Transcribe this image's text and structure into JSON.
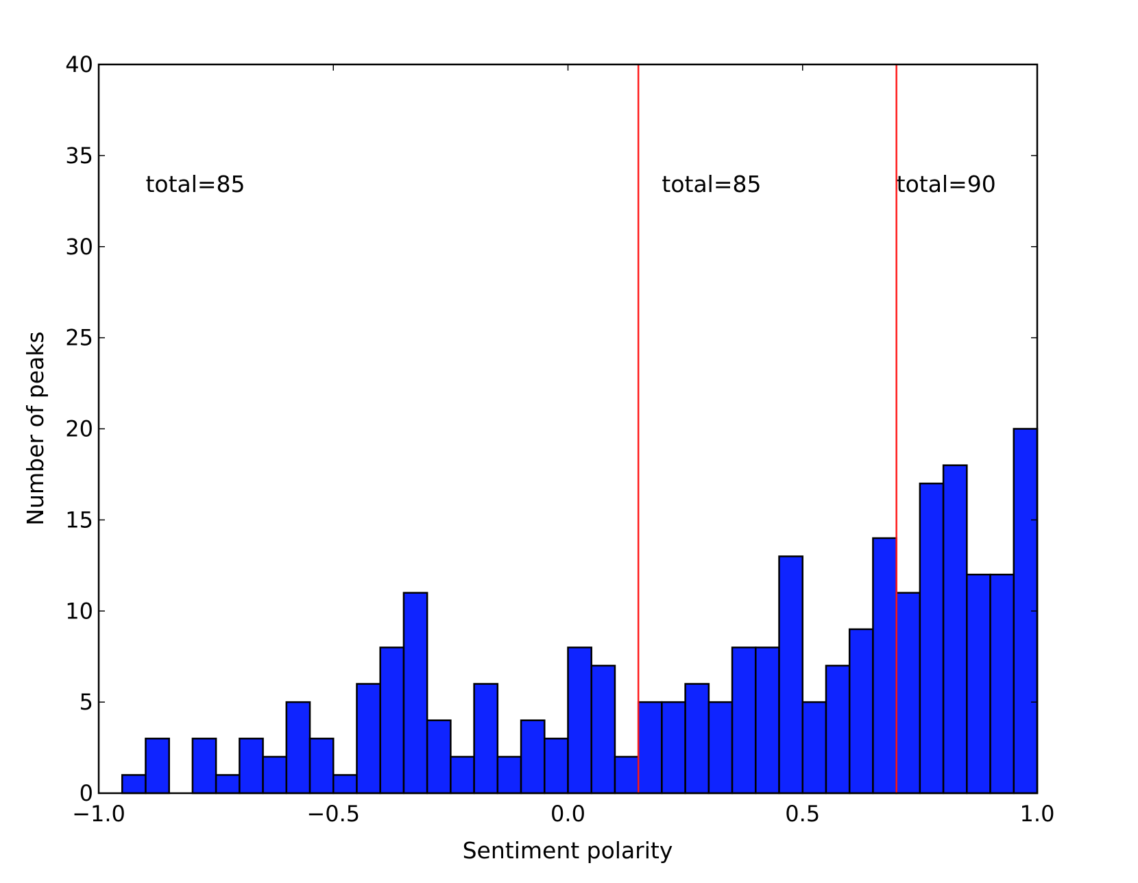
{
  "chart_data": {
    "type": "bar",
    "title": "",
    "xlabel": "Sentiment polarity",
    "ylabel": "Number of peaks",
    "xlim": [
      -1.0,
      1.0
    ],
    "ylim": [
      0,
      40
    ],
    "bin_width": 0.05,
    "bin_starts": [
      -0.95,
      -0.9,
      -0.85,
      -0.8,
      -0.75,
      -0.7,
      -0.65,
      -0.6,
      -0.55,
      -0.5,
      -0.45,
      -0.4,
      -0.35,
      -0.3,
      -0.25,
      -0.2,
      -0.15,
      -0.1,
      -0.05,
      0.0,
      0.05,
      0.1,
      0.15,
      0.2,
      0.25,
      0.3,
      0.35,
      0.4,
      0.45,
      0.5,
      0.55,
      0.6,
      0.65,
      0.7,
      0.75,
      0.8,
      0.85,
      0.9,
      0.95
    ],
    "values": [
      1,
      3,
      0,
      3,
      1,
      3,
      2,
      5,
      3,
      1,
      6,
      8,
      11,
      4,
      2,
      6,
      2,
      4,
      3,
      8,
      7,
      2,
      5,
      5,
      6,
      5,
      8,
      8,
      13,
      5,
      7,
      9,
      14,
      11,
      17,
      18,
      12,
      12,
      20
    ],
    "xticks": [
      -1.0,
      -0.5,
      0.0,
      0.5,
      1.0
    ],
    "xtick_labels": [
      "−1.0",
      "−0.5",
      "0.0",
      "0.5",
      "1.0"
    ],
    "yticks": [
      0,
      5,
      10,
      15,
      20,
      25,
      30,
      35,
      40
    ],
    "ytick_labels": [
      "0",
      "5",
      "10",
      "15",
      "20",
      "25",
      "30",
      "35",
      "40"
    ],
    "vlines": [
      0.15,
      0.7
    ],
    "annotations": [
      {
        "text": "total=85",
        "x": -0.9,
        "y": 33
      },
      {
        "text": "total=85",
        "x": 0.2,
        "y": 33
      },
      {
        "text": "total=90",
        "x": 0.7,
        "y": 33
      }
    ],
    "grid": false,
    "colors": {
      "bar": "#0f24ff",
      "edge": "#000000",
      "vline": "#ff1a1a"
    }
  }
}
